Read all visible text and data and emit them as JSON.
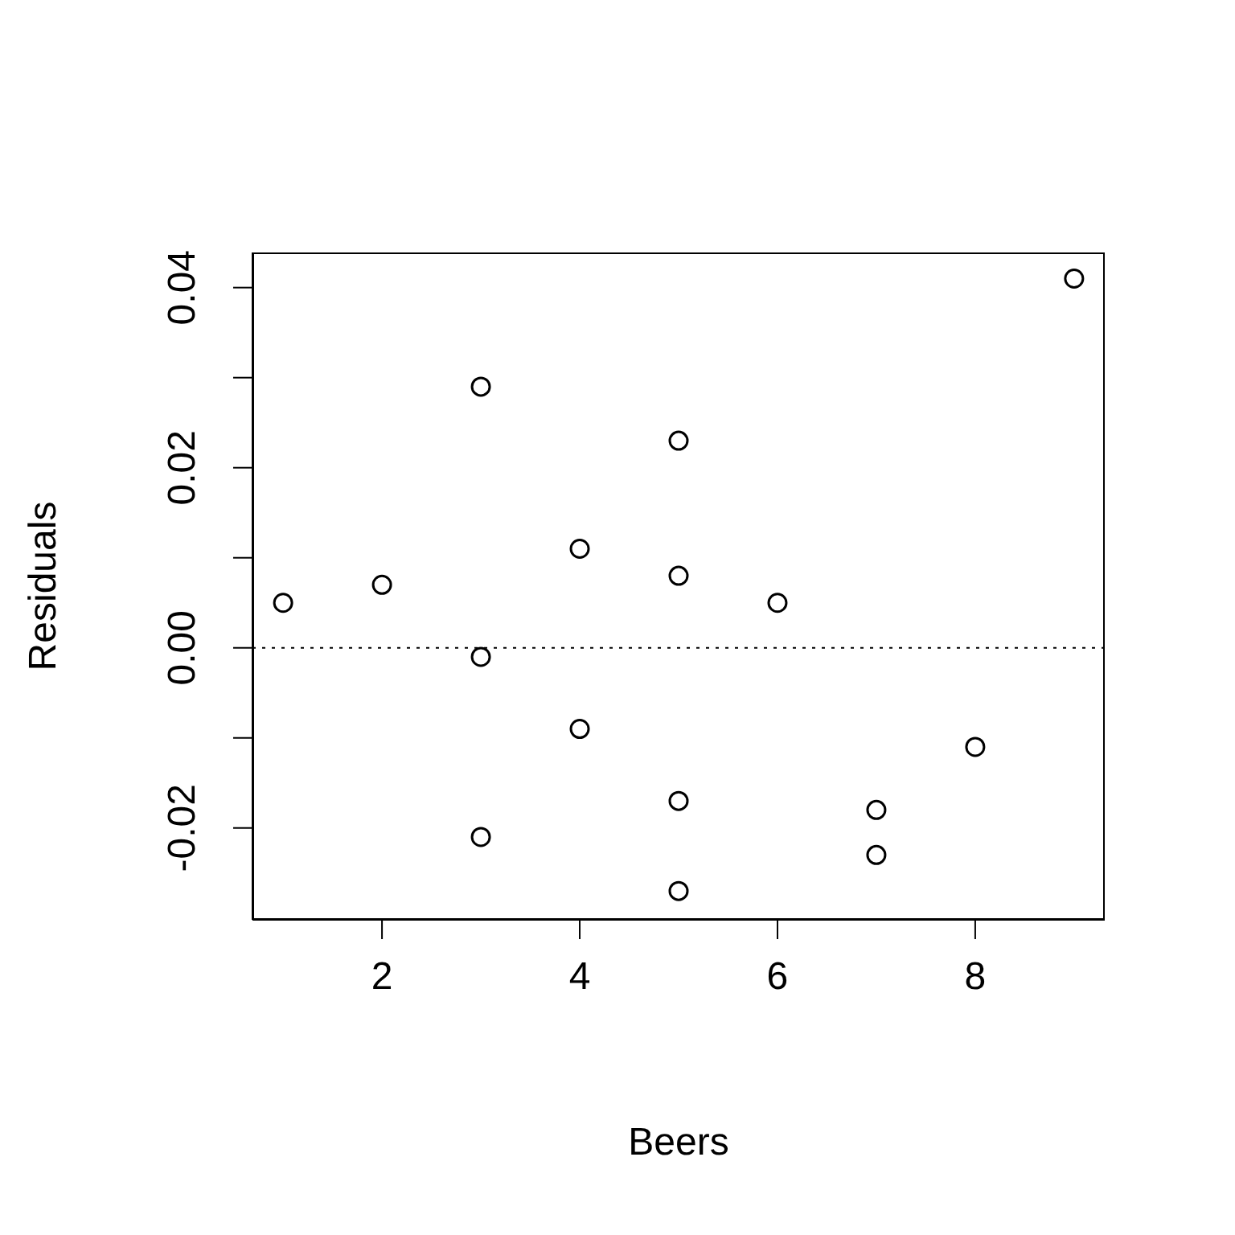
{
  "chart_data": {
    "type": "scatter",
    "xlabel": "Beers",
    "ylabel": "Residuals",
    "x": [
      1,
      2,
      3,
      3,
      3,
      4,
      4,
      5,
      5,
      5,
      5,
      6,
      7,
      7,
      8,
      9
    ],
    "values": [
      0.005,
      0.007,
      0.029,
      -0.001,
      -0.021,
      0.011,
      -0.009,
      0.023,
      0.008,
      -0.017,
      -0.027,
      0.005,
      -0.018,
      -0.023,
      -0.011,
      0.041
    ],
    "color": "#000000",
    "marker": "circle",
    "xlim": [
      0.69,
      9.31
    ],
    "ylim": [
      -0.0302,
      0.0439
    ],
    "xticks": [
      2,
      4,
      6,
      8
    ],
    "yticks": [
      -0.02,
      {
        "value": -0.01,
        "label": null
      },
      {
        "value": 0,
        "label": "0.00"
      },
      {
        "value": 0.01,
        "label": null
      },
      0.02,
      {
        "value": 0.03,
        "label": null
      },
      0.04
    ],
    "ref_lines": [
      {
        "axis": "y",
        "value": 0,
        "line_style": "dotted",
        "color": "#000000"
      }
    ],
    "grid": false
  }
}
